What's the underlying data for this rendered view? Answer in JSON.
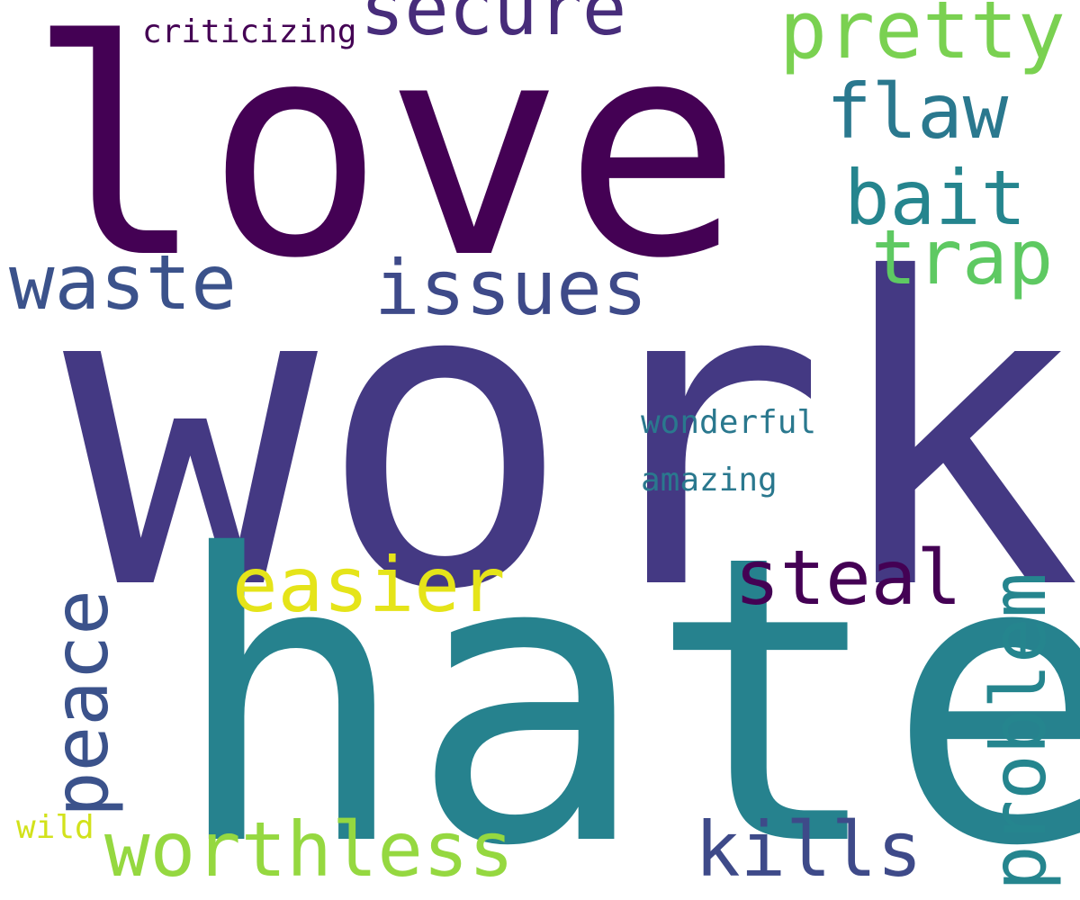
{
  "words": {
    "love": "love",
    "work": "work",
    "hate": "hate",
    "secure": "secure",
    "criticizing": "criticizing",
    "pretty": "pretty",
    "flaw": "flaw",
    "bait": "bait",
    "trap": "trap",
    "waste": "waste",
    "issues": "issues",
    "wonderful": "wonderful",
    "amazing": "amazing",
    "easier": "easier",
    "steal": "steal",
    "peace": "peace",
    "problem": "problem",
    "worthless": "worthless",
    "kills": "kills",
    "wild": "wild"
  },
  "colors": {
    "background": "#ffffff",
    "love": "#440154",
    "work": "#443983",
    "hate": "#26828e",
    "secure": "#472c7a",
    "criticizing": "#440154",
    "pretty": "#7ad151",
    "flaw": "#2a788e",
    "bait": "#25858e",
    "trap": "#5ec962",
    "waste": "#3b528b",
    "issues": "#3e4a89",
    "wonderful": "#2a788e",
    "amazing": "#2a788e",
    "easier": "#e5e419",
    "steal": "#440154",
    "peace": "#3b528b",
    "problem": "#25858e",
    "worthless": "#95d840",
    "kills": "#3e4a89",
    "wild": "#d2e21b"
  },
  "vertical_words": [
    "peace",
    "problem"
  ]
}
